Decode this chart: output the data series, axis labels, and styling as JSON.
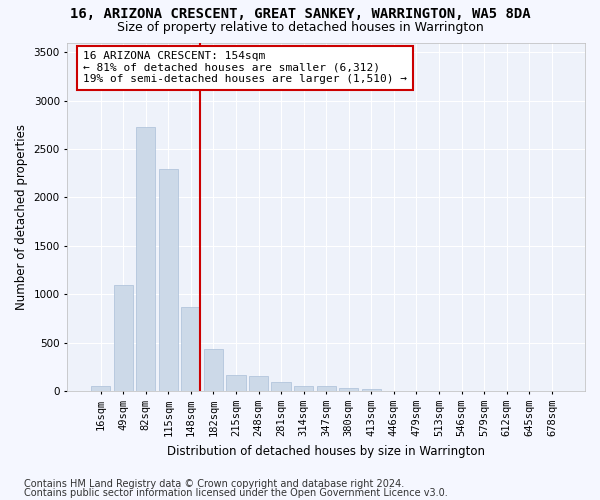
{
  "title": "16, ARIZONA CRESCENT, GREAT SANKEY, WARRINGTON, WA5 8DA",
  "subtitle": "Size of property relative to detached houses in Warrington",
  "xlabel": "Distribution of detached houses by size in Warrington",
  "ylabel": "Number of detached properties",
  "bar_labels": [
    "16sqm",
    "49sqm",
    "82sqm",
    "115sqm",
    "148sqm",
    "182sqm",
    "215sqm",
    "248sqm",
    "281sqm",
    "314sqm",
    "347sqm",
    "380sqm",
    "413sqm",
    "446sqm",
    "479sqm",
    "513sqm",
    "546sqm",
    "579sqm",
    "612sqm",
    "645sqm",
    "678sqm"
  ],
  "bar_values": [
    50,
    1100,
    2730,
    2290,
    870,
    430,
    170,
    160,
    95,
    55,
    55,
    30,
    25,
    0,
    0,
    0,
    0,
    0,
    0,
    0,
    0
  ],
  "bar_color": "#ccd9e8",
  "bar_edge_color": "#aabfd8",
  "highlight_line_color": "#cc0000",
  "highlight_bin_index": 4,
  "annotation_text": "16 ARIZONA CRESCENT: 154sqm\n← 81% of detached houses are smaller (6,312)\n19% of semi-detached houses are larger (1,510) →",
  "annotation_box_color": "#ffffff",
  "annotation_box_edge": "#cc0000",
  "ylim": [
    0,
    3600
  ],
  "yticks": [
    0,
    500,
    1000,
    1500,
    2000,
    2500,
    3000,
    3500
  ],
  "footer_line1": "Contains HM Land Registry data © Crown copyright and database right 2024.",
  "footer_line2": "Contains public sector information licensed under the Open Government Licence v3.0.",
  "bg_color": "#eef2fa",
  "grid_color": "#ffffff",
  "title_fontsize": 10,
  "subtitle_fontsize": 9,
  "axis_label_fontsize": 8.5,
  "tick_fontsize": 7.5,
  "annotation_fontsize": 8,
  "footer_fontsize": 7
}
